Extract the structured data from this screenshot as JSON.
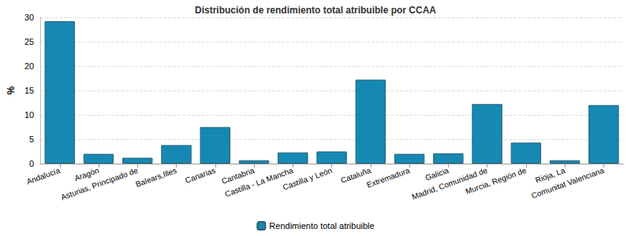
{
  "chart_data": {
    "type": "bar",
    "title": "Distribución de rendimiento total atribuible por CCAA",
    "y_label": "%",
    "categories": [
      "Andalucía",
      "Aragón",
      "Asturias, Principado de",
      "Balears,Illes",
      "Canarias",
      "Cantabria",
      "Castilla - La Mancha",
      "Castilla y León",
      "Cataluña",
      "Extremadura",
      "Galicia",
      "Madrid, Comunidad de",
      "Murcia, Región de",
      "Rioja, La",
      "Comunitat Valenciana"
    ],
    "series": [
      {
        "name": "Rendimiento total atribuible",
        "color": "#1589b3",
        "values": [
          29.2,
          2.0,
          1.2,
          3.8,
          7.5,
          0.7,
          2.3,
          2.5,
          17.2,
          2.0,
          2.1,
          12.2,
          4.3,
          0.7,
          12.0
        ]
      }
    ],
    "ylim": [
      0,
      30
    ],
    "yticks": [
      0,
      5,
      10,
      15,
      20,
      25,
      30
    ],
    "grid": true,
    "legend": "bottom"
  }
}
